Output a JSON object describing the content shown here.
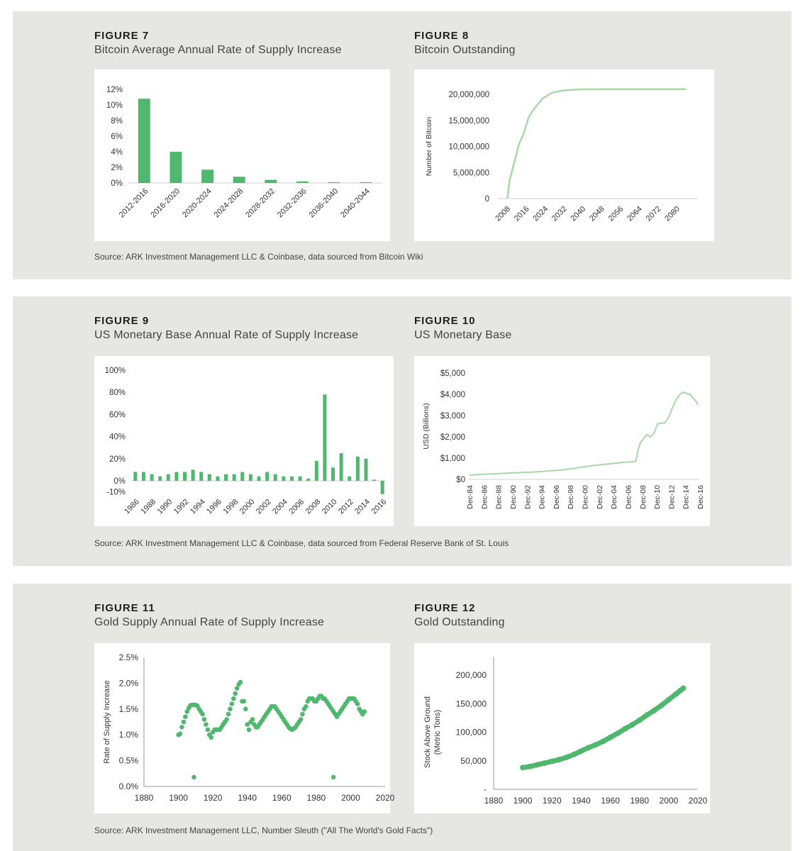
{
  "colors": {
    "bar": "#4fb76e",
    "line": "#a8d8a8",
    "dot": "#4fb76e",
    "panel": "#e6e6e2"
  },
  "panels": [
    {
      "source": "Source: ARK Investment Management LLC & Coinbase, data sourced from Bitcoin Wiki"
    },
    {
      "source": "Source: ARK Investment Management LLC & Coinbase, data sourced from Federal Reserve Bank of St. Louis"
    },
    {
      "source": "Source: ARK Investment Management LLC, Number Sleuth (\"All The World's Gold Facts\")"
    }
  ],
  "figures": [
    {
      "number": "FIGURE 7",
      "title": "Bitcoin Average Annual Rate of Supply Increase"
    },
    {
      "number": "FIGURE 8",
      "title": "Bitcoin Outstanding"
    },
    {
      "number": "FIGURE 9",
      "title": "US Monetary Base Annual Rate of Supply Increase"
    },
    {
      "number": "FIGURE 10",
      "title": "US Monetary Base"
    },
    {
      "number": "FIGURE 11",
      "title": "Gold Supply Annual Rate of Supply Increase"
    },
    {
      "number": "FIGURE 12",
      "title": "Gold Outstanding"
    }
  ],
  "chart_data": [
    {
      "id": "fig7",
      "type": "bar",
      "categories": [
        "2012-2016",
        "2016-2020",
        "2020-2024",
        "2024-2028",
        "2028-2032",
        "2032-2036",
        "2036-2040",
        "2040-2044"
      ],
      "values": [
        10.8,
        4.0,
        1.7,
        0.8,
        0.4,
        0.2,
        0.1,
        0.1
      ],
      "ylim": [
        0,
        12
      ],
      "yticks": [
        0,
        2,
        4,
        6,
        8,
        10,
        12
      ],
      "ytick_labels": [
        "0%",
        "2%",
        "4%",
        "6%",
        "8%",
        "10%",
        "12%"
      ],
      "xlabel": "",
      "ylabel": ""
    },
    {
      "id": "fig8",
      "type": "line",
      "x": [
        2009,
        2010,
        2012,
        2014,
        2016,
        2018,
        2020,
        2024,
        2028,
        2032,
        2036,
        2040,
        2050,
        2060,
        2070,
        2080,
        2085
      ],
      "y": [
        0,
        3500000,
        7000000,
        10500000,
        12500000,
        15500000,
        17000000,
        19200000,
        20300000,
        20700000,
        20850000,
        20950000,
        21000000,
        21000000,
        21000000,
        21000000,
        21000000
      ],
      "xlim": [
        2005,
        2090
      ],
      "ylim": [
        0,
        20000000
      ],
      "xticks": [
        2008,
        2016,
        2024,
        2032,
        2040,
        2048,
        2056,
        2064,
        2072,
        2080
      ],
      "xtick_labels": [
        "2008",
        "2016",
        "2024",
        "2032",
        "2040",
        "2048",
        "2056",
        "2064",
        "2072",
        "2080"
      ],
      "yticks": [
        0,
        5000000,
        10000000,
        15000000,
        20000000
      ],
      "ytick_labels": [
        "0",
        "5,000,000",
        "10,000,000",
        "15,000,000",
        "20,000,000"
      ],
      "ylabel": "Number of Bitcoin"
    },
    {
      "id": "fig9",
      "type": "bar",
      "categories": [
        "1986",
        "1987",
        "1988",
        "1989",
        "1990",
        "1991",
        "1992",
        "1993",
        "1994",
        "1995",
        "1996",
        "1997",
        "1998",
        "1999",
        "2000",
        "2001",
        "2002",
        "2003",
        "2004",
        "2005",
        "2006",
        "2007",
        "2008",
        "2009",
        "2010",
        "2011",
        "2012",
        "2013",
        "2014",
        "2015",
        "2016"
      ],
      "values": [
        8,
        8,
        6,
        4,
        6,
        8,
        8,
        10,
        8,
        6,
        4,
        6,
        6,
        8,
        6,
        4,
        8,
        6,
        4,
        4,
        4,
        2,
        18,
        78,
        12,
        25,
        4,
        22,
        20,
        1,
        -12
      ],
      "ylim": [
        -10,
        100
      ],
      "yticks": [
        -10,
        0,
        20,
        40,
        60,
        80,
        100
      ],
      "ytick_labels": [
        "-10%",
        "0%",
        "20%",
        "40%",
        "60%",
        "80%",
        "100%"
      ],
      "xtick_labels": [
        "1986",
        "1988",
        "1990",
        "1992",
        "1994",
        "1996",
        "1998",
        "2000",
        "2002",
        "2004",
        "2006",
        "2008",
        "2010",
        "2012",
        "2014",
        "2016"
      ]
    },
    {
      "id": "fig10",
      "type": "line",
      "x": [
        1984.9,
        1986,
        1988,
        1990,
        1992,
        1994,
        1996,
        1998,
        2000,
        2002,
        2004,
        2006,
        2007.5,
        2008.0,
        2008.3,
        2008.6,
        2009,
        2009.5,
        2010,
        2010.5,
        2011,
        2011.5,
        2012,
        2012.5,
        2013,
        2013.5,
        2014,
        2014.5,
        2015,
        2015.5,
        2016,
        2016.3,
        2016.6
      ],
      "y": [
        200,
        230,
        260,
        290,
        320,
        350,
        400,
        450,
        550,
        650,
        720,
        790,
        830,
        850,
        1400,
        1700,
        1900,
        2100,
        2000,
        2150,
        2600,
        2650,
        2650,
        2900,
        3300,
        3700,
        3950,
        4100,
        4050,
        4000,
        3800,
        3700,
        3500
      ],
      "xlim": [
        1984.7,
        2016.8
      ],
      "ylim": [
        0,
        5000
      ],
      "xticks": [
        1984.9,
        1986.9,
        1988.9,
        1990.9,
        1992.9,
        1994.9,
        1996.9,
        1998.9,
        2000.9,
        2002.9,
        2004.9,
        2006.9,
        2008.9,
        2010.9,
        2012.9,
        2014.9,
        2016.9
      ],
      "xtick_labels": [
        "Dec-84",
        "Dec-86",
        "Dec-88",
        "Dec-90",
        "Dec-92",
        "Dec-94",
        "Dec-96",
        "Dec-98",
        "Dec-00",
        "Dec-02",
        "Dec-04",
        "Dec-06",
        "Dec-08",
        "Dec-10",
        "Dec-12",
        "Dec-14",
        "Dec-16"
      ],
      "yticks": [
        0,
        1000,
        2000,
        3000,
        4000,
        5000
      ],
      "ytick_labels": [
        "$0",
        "$1,000",
        "$2,000",
        "$3,000",
        "$4,000",
        "$5,000"
      ],
      "ylabel": "USD (Billions)"
    },
    {
      "id": "fig11",
      "type": "scatter",
      "x": [
        1900,
        1901,
        1902,
        1903,
        1904,
        1905,
        1906,
        1907,
        1908,
        1909,
        1910,
        1911,
        1912,
        1913,
        1914,
        1915,
        1916,
        1917,
        1918,
        1919,
        1920,
        1921,
        1922,
        1923,
        1924,
        1925,
        1926,
        1927,
        1928,
        1929,
        1930,
        1931,
        1932,
        1933,
        1934,
        1935,
        1936,
        1937,
        1938,
        1939,
        1940,
        1941,
        1942,
        1943,
        1944,
        1945,
        1946,
        1947,
        1948,
        1949,
        1950,
        1951,
        1952,
        1953,
        1954,
        1955,
        1956,
        1957,
        1958,
        1959,
        1960,
        1961,
        1962,
        1963,
        1964,
        1965,
        1966,
        1967,
        1968,
        1969,
        1970,
        1971,
        1972,
        1973,
        1974,
        1975,
        1976,
        1977,
        1978,
        1979,
        1980,
        1981,
        1982,
        1983,
        1984,
        1985,
        1986,
        1987,
        1988,
        1989,
        1990,
        1991,
        1992,
        1993,
        1994,
        1995,
        1996,
        1997,
        1998,
        1999,
        2000,
        2001,
        2002,
        2003,
        2004,
        2005,
        2006,
        2007,
        2008,
        1909,
        1990
      ],
      "y": [
        1.0,
        1.02,
        1.15,
        1.25,
        1.35,
        1.45,
        1.52,
        1.57,
        1.58,
        1.58,
        1.58,
        1.56,
        1.5,
        1.45,
        1.4,
        1.3,
        1.2,
        1.1,
        1.0,
        0.95,
        1.05,
        1.1,
        1.1,
        1.1,
        1.1,
        1.15,
        1.2,
        1.25,
        1.3,
        1.4,
        1.5,
        1.6,
        1.7,
        1.8,
        1.9,
        1.98,
        2.02,
        1.65,
        1.65,
        1.5,
        1.2,
        1.1,
        1.25,
        1.3,
        1.2,
        1.15,
        1.15,
        1.2,
        1.25,
        1.3,
        1.35,
        1.4,
        1.45,
        1.5,
        1.55,
        1.55,
        1.55,
        1.5,
        1.45,
        1.4,
        1.35,
        1.3,
        1.25,
        1.2,
        1.15,
        1.12,
        1.1,
        1.12,
        1.15,
        1.2,
        1.25,
        1.3,
        1.4,
        1.5,
        1.55,
        1.65,
        1.7,
        1.7,
        1.7,
        1.65,
        1.65,
        1.7,
        1.75,
        1.75,
        1.7,
        1.7,
        1.65,
        1.6,
        1.55,
        1.5,
        1.45,
        1.4,
        1.35,
        1.4,
        1.45,
        1.5,
        1.55,
        1.6,
        1.65,
        1.7,
        1.7,
        1.7,
        1.7,
        1.65,
        1.6,
        1.5,
        1.45,
        1.4,
        1.45,
        0.18,
        0.18
      ],
      "xlim": [
        1880,
        2020
      ],
      "ylim": [
        0,
        2.5
      ],
      "xticks": [
        1880,
        1900,
        1920,
        1940,
        1960,
        1980,
        2000,
        2020
      ],
      "xtick_labels": [
        "1880",
        "1900",
        "1920",
        "1940",
        "1960",
        "1980",
        "2000",
        "2020"
      ],
      "yticks": [
        0,
        0.5,
        1.0,
        1.5,
        2.0,
        2.5
      ],
      "ytick_labels": [
        "0.0%",
        "0.5%",
        "1.0%",
        "1.5%",
        "2.0%",
        "2.5%"
      ],
      "ylabel": "Rate of Supply Increase"
    },
    {
      "id": "fig12",
      "type": "scatter",
      "x": [
        1900,
        1905,
        1910,
        1915,
        1920,
        1925,
        1930,
        1935,
        1940,
        1945,
        1950,
        1955,
        1960,
        1965,
        1970,
        1975,
        1980,
        1985,
        1990,
        1995,
        2000,
        2005,
        2008,
        2010
      ],
      "y": [
        38000,
        40000,
        43000,
        46000,
        49000,
        52000,
        56000,
        61000,
        67000,
        73000,
        78000,
        84000,
        91000,
        98000,
        106000,
        113000,
        121000,
        130000,
        138000,
        147000,
        157000,
        167000,
        173000,
        177000
      ],
      "xlim": [
        1880,
        2020
      ],
      "ylim": [
        0,
        200000
      ],
      "xticks": [
        1880,
        1900,
        1920,
        1940,
        1960,
        1980,
        2000,
        2020
      ],
      "xtick_labels": [
        "1880",
        "1900",
        "1920",
        "1940",
        "1960",
        "1980",
        "2000",
        "2020"
      ],
      "yticks": [
        0,
        50000,
        100000,
        150000,
        200000
      ],
      "ytick_labels": [
        "-",
        "50,000",
        "100,000",
        "150,000",
        "200,000"
      ],
      "ylabel": "Stock Above Ground (Metric Tons)",
      "ylabel_lines": [
        "Stock Above Ground",
        "(Metric Tons)"
      ]
    }
  ]
}
